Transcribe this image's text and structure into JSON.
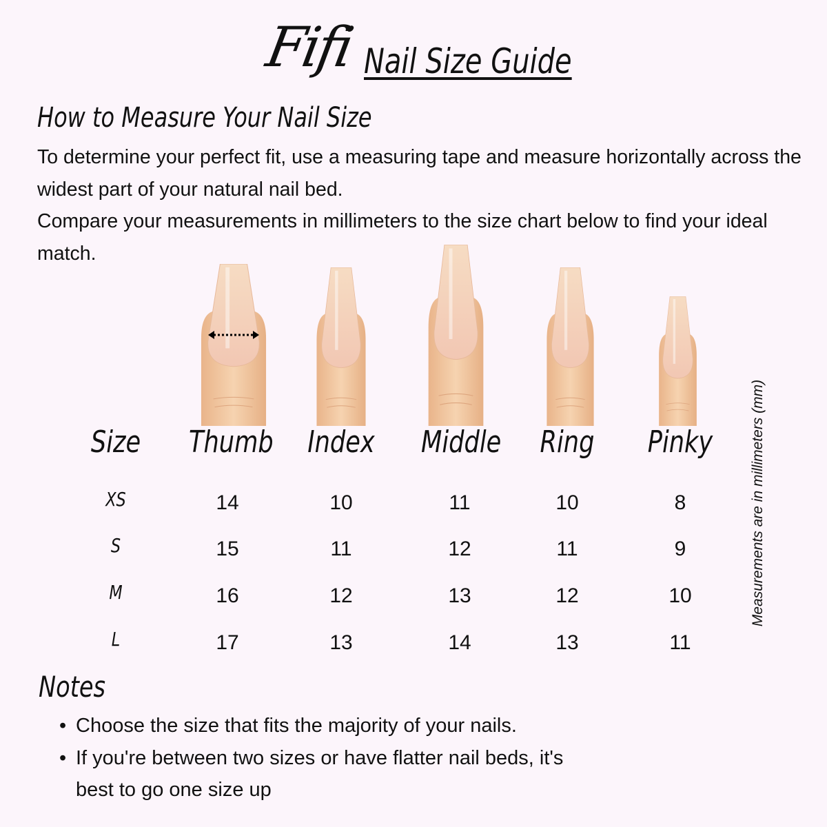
{
  "header": {
    "brand": "Fifi",
    "title": "Nail Size Guide"
  },
  "measure": {
    "heading": "How to Measure Your Nail Size",
    "paragraphs": [
      "To determine your perfect fit, use a measuring tape and measure horizontally across the widest part of your natural nail bed.",
      "Compare your measurements in millimeters to the size chart below to find your ideal match."
    ]
  },
  "colors": {
    "background": "#fcf5fb",
    "skin": "#f1c79f",
    "nail": "#f3d3b8"
  },
  "table": {
    "headers": [
      "Size",
      "Thumb",
      "Index",
      "Middle",
      "Ring",
      "Pinky"
    ],
    "rows": [
      {
        "size": "XS",
        "values": [
          "14",
          "10",
          "11",
          "10",
          "8"
        ]
      },
      {
        "size": "S",
        "values": [
          "15",
          "11",
          "12",
          "11",
          "9"
        ]
      },
      {
        "size": "M",
        "values": [
          "16",
          "12",
          "13",
          "12",
          "10"
        ]
      },
      {
        "size": "L",
        "values": [
          "17",
          "13",
          "14",
          "13",
          "11"
        ]
      }
    ],
    "unit_note": "Measurements are in millimeters (mm)"
  },
  "notes": {
    "heading": "Notes",
    "items": [
      "Choose the size that fits the majority of your nails.",
      "If you're between two sizes or have flatter nail beds, it's best to go one size up"
    ]
  }
}
